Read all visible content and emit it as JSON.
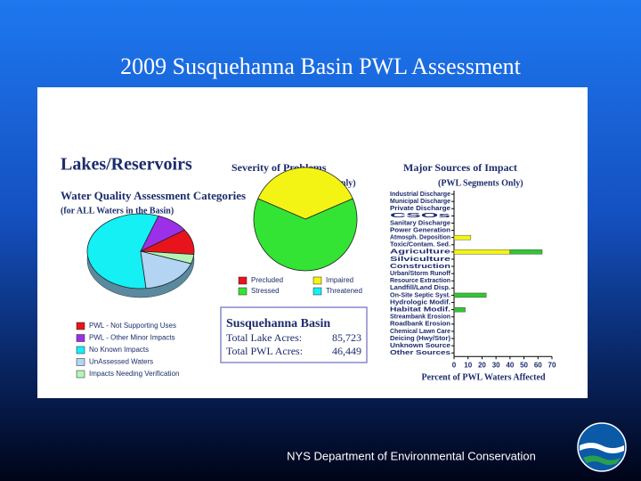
{
  "slide": {
    "title": "2009 Susquehanna Basin PWL Assessment",
    "footer": "NYS Department of Environmental  Conservation"
  },
  "panel": {
    "heading": "Lakes/Reservoirs",
    "summary": {
      "title": "Susquehanna Basin",
      "rows": [
        [
          "Total Lake Acres:",
          "85,723"
        ],
        [
          "Total PWL Acres:",
          "46,449"
        ]
      ]
    }
  },
  "chart_data": [
    {
      "type": "pie",
      "title": "Water Quality Assessment Categories",
      "subtitle": "(for ALL Waters in the Basin)",
      "categories": [
        "PWL - Not Supporting Uses",
        "PWL - Other Minor Impacts",
        "No Known Impacts",
        "UnAssessed Waters",
        "Impacts Needing Verification"
      ],
      "values": [
        11,
        10,
        57,
        18,
        4
      ],
      "colors": [
        "#e8141c",
        "#9b30e8",
        "#14f0f4",
        "#b4d4f4",
        "#b4f4b4"
      ]
    },
    {
      "type": "pie",
      "title": "Severity of Problems",
      "subtitle": "(PWL Segments Only)",
      "categories": [
        "Precluded",
        "Impaired",
        "Stressed",
        "Threatened"
      ],
      "values": [
        0,
        37,
        63,
        0
      ],
      "colors": [
        "#e8141c",
        "#f4f414",
        "#34e434",
        "#14f0f4"
      ]
    },
    {
      "type": "bar",
      "orientation": "horizontal",
      "stacked": true,
      "title": "Major Sources of Impact",
      "subtitle": "(PWL Segments Only)",
      "xlabel": "Percent of PWL Waters Affected",
      "categories": [
        "Industrial Discharge",
        "Municipal Discharge",
        "Private Discharge",
        "CSOs",
        "Sanitary Discharge",
        "Power Generation",
        "Atmosph. Deposition",
        "Toxic/Contam. Sed.",
        "Agriculture",
        "Silviculture",
        "Construction",
        "Urban/Storm Runoff",
        "Resource Extraction",
        "Landfill/Land Disp.",
        "On-Site Septic Syst.",
        "Hydrologic Modif.",
        "Habitat Modif.",
        "Streambank Erosion",
        "Roadbank Erosion",
        "Chemical Lawn Care",
        "Deicing (Hwy/Stor)",
        "Unknown Source",
        "Other Sources"
      ],
      "series": [
        {
          "color": "#f4f414",
          "values": [
            0,
            0,
            0,
            0,
            0,
            0,
            12,
            0,
            40,
            0,
            0,
            0,
            0,
            0,
            0,
            0,
            0,
            0,
            0,
            0,
            0,
            0,
            0
          ]
        },
        {
          "color": "#34c434",
          "values": [
            0,
            0,
            0,
            0,
            0,
            0,
            0,
            0,
            23,
            0,
            0,
            0,
            0,
            0,
            23,
            0,
            8,
            0,
            0,
            0,
            0,
            0,
            0
          ]
        }
      ],
      "xlim": [
        0,
        70
      ],
      "xticks": [
        0,
        10,
        20,
        30,
        40,
        50,
        60,
        70
      ]
    }
  ]
}
